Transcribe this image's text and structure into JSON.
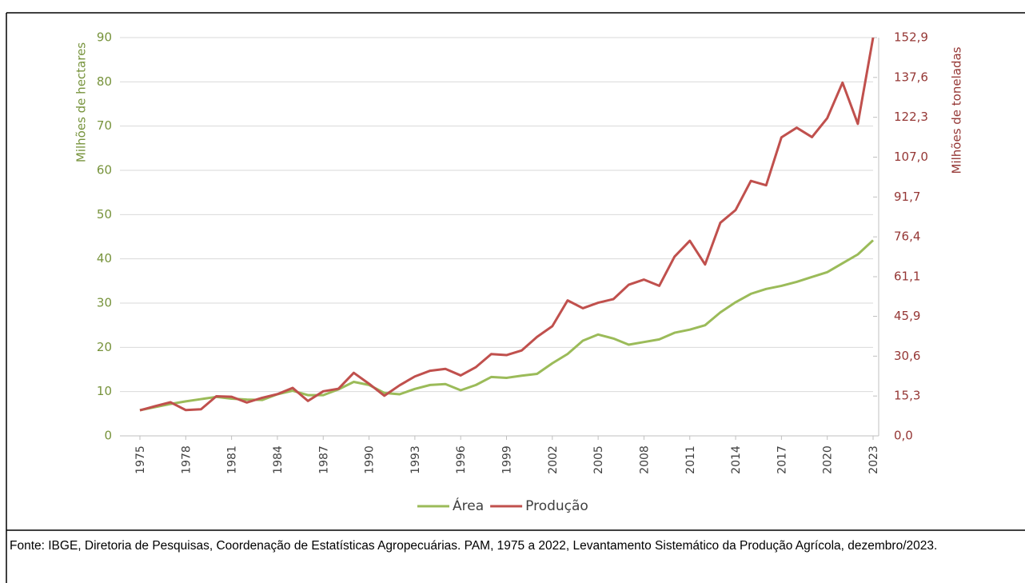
{
  "chart_data": {
    "type": "line",
    "x": [
      1975,
      1976,
      1977,
      1978,
      1979,
      1980,
      1981,
      1982,
      1983,
      1984,
      1985,
      1986,
      1987,
      1988,
      1989,
      1990,
      1991,
      1992,
      1993,
      1994,
      1995,
      1996,
      1997,
      1998,
      1999,
      2000,
      2001,
      2002,
      2003,
      2004,
      2005,
      2006,
      2007,
      2008,
      2009,
      2010,
      2011,
      2012,
      2013,
      2014,
      2015,
      2016,
      2017,
      2018,
      2019,
      2020,
      2021,
      2022,
      2023
    ],
    "xlim": [
      1975,
      2023
    ],
    "xticks": [
      1975,
      1978,
      1981,
      1984,
      1987,
      1990,
      1993,
      1996,
      1999,
      2002,
      2005,
      2008,
      2011,
      2014,
      2017,
      2020,
      2023
    ],
    "ylabel": "Milhões de hectares",
    "ylim": [
      0,
      90
    ],
    "yticks": [
      0,
      10,
      20,
      30,
      40,
      50,
      60,
      70,
      80,
      90
    ],
    "y2label": "Milhões de toneladas",
    "y2lim": [
      0,
      152.9
    ],
    "y2ticks": [
      {
        "value": 0,
        "label": "0,0"
      },
      {
        "value": 15.3,
        "label": "15,3"
      },
      {
        "value": 30.6,
        "label": "30,6"
      },
      {
        "value": 45.9,
        "label": "45,9"
      },
      {
        "value": 61.1,
        "label": "61,1"
      },
      {
        "value": 76.4,
        "label": "76,4"
      },
      {
        "value": 91.7,
        "label": "91,7"
      },
      {
        "value": 107.0,
        "label": "107,0"
      },
      {
        "value": 122.3,
        "label": "122,3"
      },
      {
        "value": 137.6,
        "label": "137,6"
      },
      {
        "value": 152.9,
        "label": "152,9"
      }
    ],
    "grid": true,
    "legend": "bottom",
    "series": [
      {
        "name": "Área",
        "color": "#9bbb59",
        "axis": "y",
        "values": [
          5.8,
          6.5,
          7.2,
          7.8,
          8.3,
          8.8,
          8.4,
          8.2,
          8.1,
          9.4,
          10.2,
          9.2,
          9.2,
          10.5,
          12.2,
          11.5,
          9.7,
          9.4,
          10.6,
          11.5,
          11.7,
          10.3,
          11.5,
          13.3,
          13.1,
          13.6,
          14.0,
          16.4,
          18.5,
          21.5,
          22.9,
          22.0,
          20.6,
          21.2,
          21.8,
          23.3,
          24.0,
          25.0,
          27.9,
          30.2,
          32.1,
          33.2,
          33.9,
          34.8,
          35.9,
          37.0,
          39.0,
          41.0,
          44.2
        ]
      },
      {
        "name": "Produção",
        "color": "#c0504d",
        "axis": "y2",
        "values": [
          9.8,
          11.4,
          12.9,
          9.9,
          10.2,
          15.2,
          15.0,
          12.8,
          14.6,
          16.0,
          18.4,
          13.4,
          17.1,
          18.1,
          24.2,
          20.0,
          15.4,
          19.4,
          22.8,
          25.0,
          25.7,
          23.2,
          26.4,
          31.4,
          31.0,
          32.8,
          38.0,
          42.1,
          52.0,
          49.0,
          51.1,
          52.5,
          58.0,
          60.0,
          57.6,
          68.8,
          74.9,
          65.8,
          81.8,
          86.7,
          97.9,
          96.2,
          114.6,
          118.3,
          114.7,
          122.0,
          135.6,
          119.8,
          152.9
        ]
      }
    ]
  },
  "footnote": "Fonte: IBGE, Diretoria de Pesquisas, Coordenação de Estatísticas Agropecuárias. PAM, 1975 a 2022, Levantamento Sistemático da Produção Agrícola, dezembro/2023."
}
